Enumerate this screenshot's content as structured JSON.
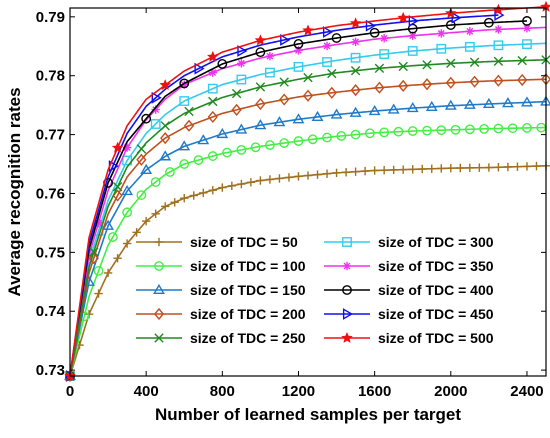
{
  "chart_data": {
    "type": "line",
    "title": "",
    "xlabel": "Number of learned samples per target",
    "ylabel": "Average recognition rates",
    "xlim": [
      0,
      2500
    ],
    "ylim": [
      0.729,
      0.7915
    ],
    "xticks": [
      0,
      400,
      800,
      1200,
      1600,
      2000,
      2400
    ],
    "xtick_labels": [
      "0",
      "400",
      "800",
      "1200",
      "1600",
      "2000",
      "2400"
    ],
    "yticks": [
      0.73,
      0.74,
      0.75,
      0.76,
      0.77,
      0.78,
      0.79
    ],
    "ytick_labels": [
      "0.73",
      "0.74",
      "0.75",
      "0.76",
      "0.77",
      "0.78",
      "0.79"
    ],
    "grid": false,
    "legend_position": "bottom-center, two columns",
    "series": [
      {
        "name": "size of TDC = 50",
        "color": "#a0701e",
        "marker": "plus",
        "marker_every": 50,
        "x": [
          0,
          100,
          200,
          300,
          400,
          500,
          600,
          800,
          1000,
          1200,
          1400,
          1600,
          1800,
          2000,
          2200,
          2500
        ],
        "y": [
          0.729,
          0.7395,
          0.7465,
          0.7515,
          0.7553,
          0.7578,
          0.7592,
          0.761,
          0.7622,
          0.7629,
          0.7635,
          0.7639,
          0.7641,
          0.7643,
          0.7644,
          0.7647
        ]
      },
      {
        "name": "size of TDC = 300",
        "color": "#33ccee",
        "marker": "square",
        "marker_every": 150,
        "x": [
          0,
          100,
          200,
          300,
          400,
          500,
          600,
          800,
          1000,
          1200,
          1400,
          1600,
          1800,
          2000,
          2200,
          2500
        ],
        "y": [
          0.729,
          0.7485,
          0.7588,
          0.7656,
          0.7702,
          0.7734,
          0.7757,
          0.7785,
          0.7802,
          0.7815,
          0.7826,
          0.7835,
          0.7842,
          0.7847,
          0.7851,
          0.7855
        ]
      },
      {
        "name": "size of TDC = 100",
        "color": "#44ee44",
        "marker": "circle",
        "marker_every": 75,
        "x": [
          0,
          100,
          200,
          300,
          400,
          500,
          600,
          800,
          1000,
          1200,
          1400,
          1600,
          1800,
          2000,
          2200,
          2500
        ],
        "y": [
          0.729,
          0.7425,
          0.7512,
          0.7568,
          0.7607,
          0.7632,
          0.765,
          0.7668,
          0.768,
          0.7689,
          0.7697,
          0.7703,
          0.7706,
          0.7708,
          0.771,
          0.7712
        ]
      },
      {
        "name": "size of TDC = 350",
        "color": "#ee33ee",
        "marker": "asterisk",
        "marker_every": 150,
        "x": [
          0,
          100,
          200,
          300,
          400,
          500,
          600,
          800,
          1000,
          1200,
          1400,
          1600,
          1800,
          2000,
          2200,
          2500
        ],
        "y": [
          0.729,
          0.7495,
          0.7605,
          0.7678,
          0.7725,
          0.776,
          0.7785,
          0.7812,
          0.783,
          0.7843,
          0.7853,
          0.7862,
          0.7868,
          0.7873,
          0.7878,
          0.7882
        ]
      },
      {
        "name": "size of TDC = 150",
        "color": "#1f7ac8",
        "marker": "triangle",
        "marker_every": 100,
        "x": [
          0,
          100,
          200,
          300,
          400,
          500,
          600,
          800,
          1000,
          1200,
          1400,
          1600,
          1800,
          2000,
          2200,
          2500
        ],
        "y": [
          0.729,
          0.745,
          0.7545,
          0.7604,
          0.764,
          0.7663,
          0.768,
          0.7701,
          0.7716,
          0.7726,
          0.7734,
          0.774,
          0.7745,
          0.7749,
          0.7752,
          0.7756
        ]
      },
      {
        "name": "size of TDC = 400",
        "color": "#000000",
        "marker": "circle",
        "marker_every": 200,
        "x": [
          0,
          100,
          200,
          300,
          400,
          500,
          600,
          800,
          1000,
          1200,
          1400,
          1600,
          1800,
          2000,
          2200,
          2400
        ],
        "y": [
          0.729,
          0.7505,
          0.7618,
          0.7688,
          0.7727,
          0.7765,
          0.7787,
          0.782,
          0.784,
          0.7854,
          0.7864,
          0.7873,
          0.788,
          0.7886,
          0.789,
          0.7893
        ]
      },
      {
        "name": "size of TDC = 200",
        "color": "#c0501e",
        "marker": "diamond",
        "marker_every": 125,
        "x": [
          0,
          100,
          200,
          300,
          400,
          500,
          600,
          800,
          1000,
          1200,
          1400,
          1600,
          1800,
          2000,
          2200,
          2500
        ],
        "y": [
          0.729,
          0.7465,
          0.7565,
          0.7628,
          0.7667,
          0.7694,
          0.7712,
          0.7736,
          0.7752,
          0.7764,
          0.7772,
          0.7779,
          0.7784,
          0.7788,
          0.7791,
          0.7794
        ]
      },
      {
        "name": "size of TDC = 450",
        "color": "#1010ee",
        "marker": "triangle-right",
        "marker_every": 225,
        "x": [
          0,
          100,
          200,
          300,
          400,
          500,
          600,
          800,
          1000,
          1200,
          1400,
          1600,
          1800,
          2000,
          2200,
          2250
        ],
        "y": [
          0.729,
          0.7515,
          0.7628,
          0.7702,
          0.7748,
          0.7777,
          0.78,
          0.7832,
          0.7852,
          0.7866,
          0.7877,
          0.7886,
          0.7893,
          0.7898,
          0.7902,
          0.7903
        ]
      },
      {
        "name": "size of TDC = 250",
        "color": "#208a20",
        "marker": "x",
        "marker_every": 125,
        "x": [
          0,
          100,
          200,
          300,
          400,
          500,
          600,
          800,
          1000,
          1200,
          1400,
          1600,
          1800,
          2000,
          2200,
          2500
        ],
        "y": [
          0.729,
          0.7475,
          0.7578,
          0.7645,
          0.7686,
          0.7715,
          0.7736,
          0.7763,
          0.7781,
          0.7794,
          0.7805,
          0.7812,
          0.7817,
          0.7821,
          0.7824,
          0.7827
        ]
      },
      {
        "name": "size of TDC = 500",
        "color": "#ee1111",
        "marker": "star",
        "marker_every": 250,
        "x": [
          0,
          100,
          200,
          300,
          400,
          500,
          600,
          800,
          1000,
          1200,
          1400,
          1600,
          1800,
          2000,
          2200,
          2500
        ],
        "y": [
          0.729,
          0.7525,
          0.764,
          0.7715,
          0.776,
          0.7784,
          0.7808,
          0.784,
          0.786,
          0.7874,
          0.7885,
          0.7893,
          0.79,
          0.7906,
          0.7911,
          0.7917
        ]
      }
    ]
  }
}
